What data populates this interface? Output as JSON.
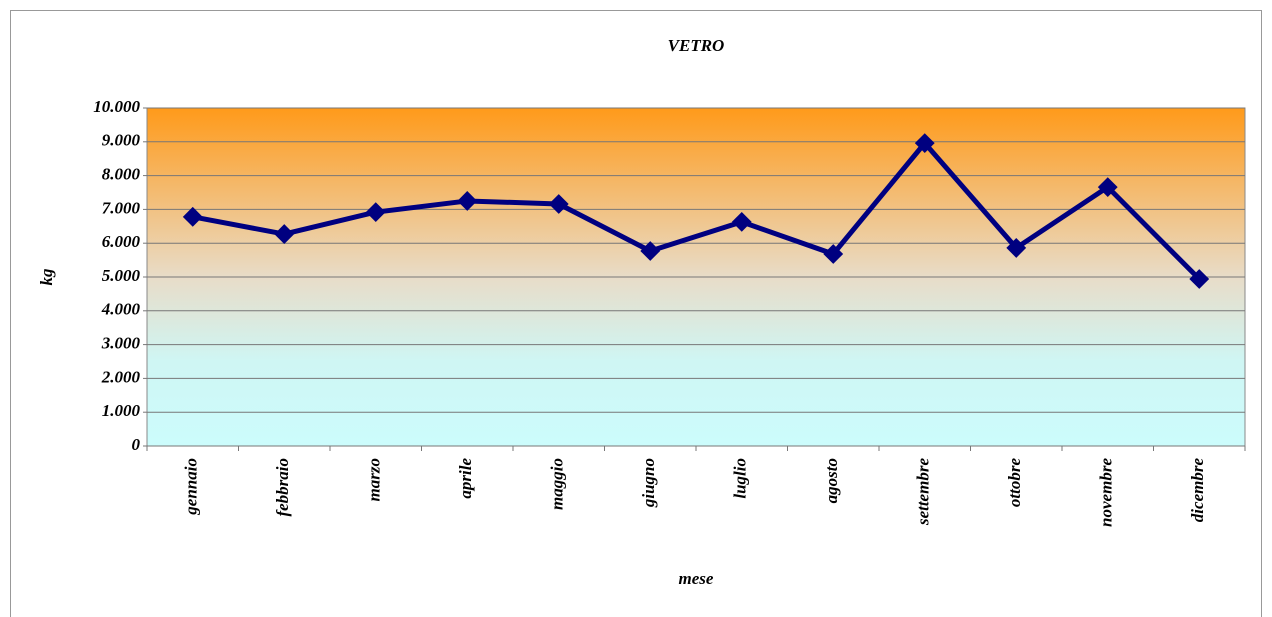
{
  "chart_data": {
    "type": "line",
    "title": "VETRO",
    "y_label": "kg",
    "x_label": "mese",
    "categories": [
      "gennaio",
      "febbraio",
      "marzo",
      "aprile",
      "maggio",
      "giugno",
      "luglio",
      "agosto",
      "settembre",
      "ottobre",
      "novembre",
      "dicembre"
    ],
    "series": [
      {
        "name": "VETRO",
        "color": "#000080",
        "values": [
          6780,
          6270,
          6920,
          7250,
          7160,
          5770,
          6630,
          5680,
          8960,
          5860,
          7660,
          4940
        ]
      }
    ],
    "ylim": [
      0,
      10000
    ],
    "yticks": [
      0,
      {
        "value": 1000,
        "label": "1.000"
      },
      {
        "value": 2000,
        "label": "2.000"
      },
      {
        "value": 3000,
        "label": "3.000"
      },
      {
        "value": 4000,
        "label": "4.000"
      },
      {
        "value": 5000,
        "label": "5.000"
      },
      {
        "value": 6000,
        "label": "6.000"
      },
      {
        "value": 7000,
        "label": "7.000"
      },
      {
        "value": 8000,
        "label": "8.000"
      },
      {
        "value": 9000,
        "label": "9.000"
      },
      {
        "value": 10000,
        "label": "10.000"
      }
    ],
    "grid": true
  }
}
